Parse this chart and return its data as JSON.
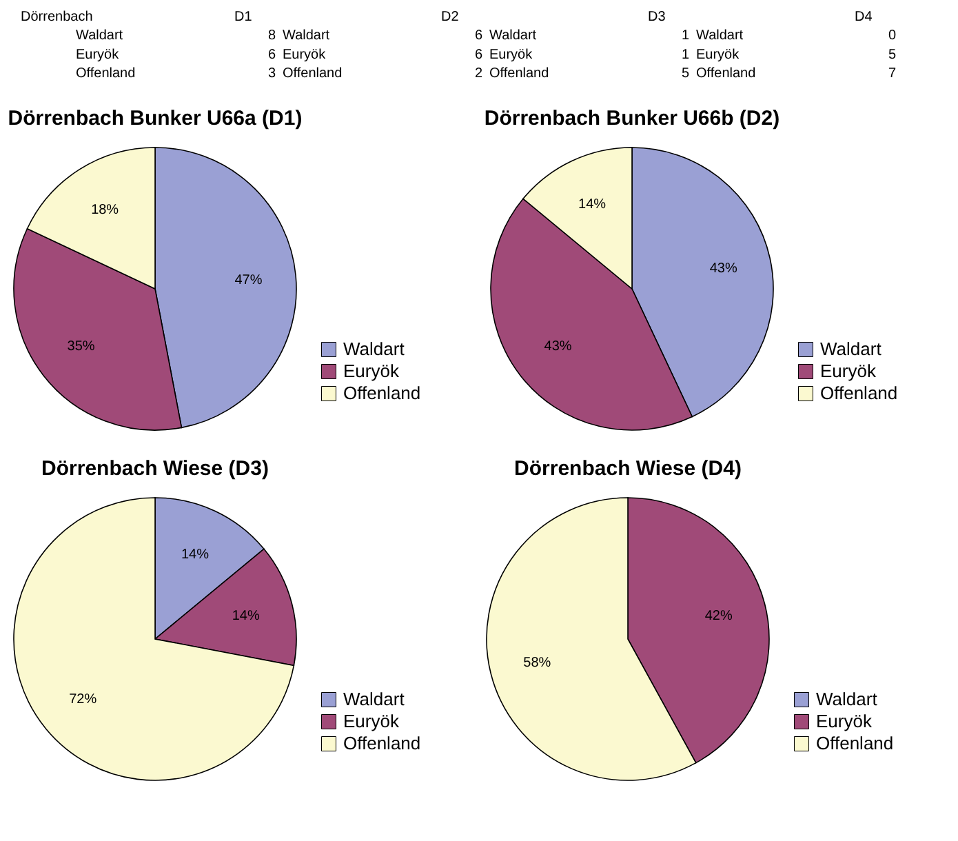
{
  "chart_data": [
    {
      "type": "other",
      "title": "Dörrenbach",
      "categories": [
        "D1",
        "D2",
        "D3",
        "D4"
      ],
      "data_labels": true,
      "series": [
        {
          "name": "Waldart",
          "values": [
            8,
            6,
            1,
            0
          ]
        },
        {
          "name": "Euryök",
          "values": [
            6,
            6,
            1,
            5
          ]
        },
        {
          "name": "Offenland",
          "values": [
            3,
            2,
            5,
            7
          ]
        }
      ]
    },
    {
      "type": "pie",
      "title": "Dörrenbach Bunker U66a (D1)",
      "categories": [
        "Waldart",
        "Euryök",
        "Offenland"
      ],
      "values": [
        47,
        35,
        18
      ],
      "colors": [
        "#9aa0d4",
        "#a04a78",
        "#fbf9d0"
      ],
      "value_labels": [
        "47%",
        "35%",
        "18%"
      ],
      "legend": "right"
    },
    {
      "type": "pie",
      "title": "Dörrenbach Bunker U66b (D2)",
      "categories": [
        "Waldart",
        "Euryök",
        "Offenland"
      ],
      "values": [
        43,
        43,
        14
      ],
      "colors": [
        "#9aa0d4",
        "#a04a78",
        "#fbf9d0"
      ],
      "value_labels": [
        "43%",
        "43%",
        "14%"
      ],
      "legend": "right"
    },
    {
      "type": "pie",
      "title": "Dörrenbach Wiese (D3)",
      "categories": [
        "Waldart",
        "Euryök",
        "Offenland"
      ],
      "values": [
        14,
        14,
        72
      ],
      "colors": [
        "#9aa0d4",
        "#a04a78",
        "#fbf9d0"
      ],
      "value_labels": [
        "14%",
        "14%",
        "72%"
      ],
      "legend": "right"
    },
    {
      "type": "pie",
      "title": "Dörrenbach Wiese (D4)",
      "categories": [
        "Waldart",
        "Euryök",
        "Offenland"
      ],
      "values": [
        0,
        42,
        58
      ],
      "colors": [
        "#9aa0d4",
        "#a04a78",
        "#fbf9d0"
      ],
      "value_labels": [
        null,
        "42%",
        "58%"
      ],
      "legend": "right"
    }
  ]
}
